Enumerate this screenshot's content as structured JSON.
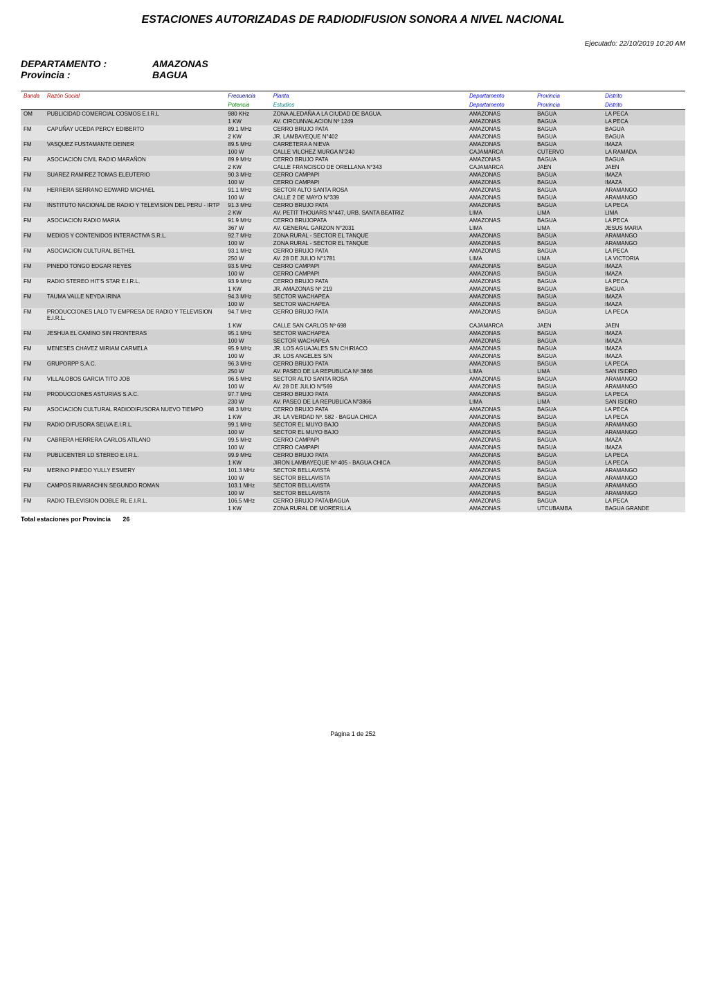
{
  "page": {
    "title": "ESTACIONES AUTORIZADAS DE RADIODIFUSION SONORA A NIVEL NACIONAL",
    "executed_label": "Ejecutado:",
    "executed_value": "22/10/2019 10:20 AM",
    "page_number": "Página 1 de 252"
  },
  "header_block": {
    "dept_label": "DEPARTAMENTO :",
    "dept_value": "AMAZONAS",
    "prov_label": "Provincia :",
    "prov_value": "BAGUA"
  },
  "table": {
    "headers_row1": {
      "banda": "Banda",
      "razon": "Razón Social",
      "frecuencia": "Frecuencia",
      "planta": "Planta",
      "departamento": "Departamento",
      "provincia": "Provincia",
      "distrito": "Distrito"
    },
    "headers_row2": {
      "banda": "",
      "razon": "",
      "potencia": "Potencia",
      "estudios": "Estudios",
      "departamento": "Departamento",
      "provincia": "Provincia",
      "distrito": "Distrito"
    },
    "header_colors": {
      "banda": "#c00000",
      "razon": "#c00000",
      "frecuencia": "#000080",
      "planta": "#0000ff",
      "departamento": "#0000ff",
      "provincia": "#0000ff",
      "distrito": "#0000ff",
      "potencia": "#008000",
      "estudios": "#008080"
    },
    "rows": [
      {
        "g": "a",
        "banda": "OM",
        "razon": "PUBLICIDAD COMERCIAL COSMOS E.I.R.L",
        "f1": "980 KHz",
        "p1": "ZONA ALEDAÑA A LA CIUDAD DE BAGUA.",
        "d1": "AMAZONAS",
        "pr1": "BAGUA",
        "di1": "LA PECA",
        "f2": "1 KW",
        "p2": "AV. CIRCUNVALACION Nº 1249",
        "d2": "AMAZONAS",
        "pr2": "BAGUA",
        "di2": "LA PECA"
      },
      {
        "g": "b",
        "banda": "FM",
        "razon": "CAPUÑAY UCEDA PERCY EDIBERTO",
        "f1": "89.1 MHz",
        "p1": "CERRO BRUJO PATA",
        "d1": "AMAZONAS",
        "pr1": "BAGUA",
        "di1": "BAGUA",
        "f2": "2 KW",
        "p2": "JR. LAMBAYEQUE N°402",
        "d2": "AMAZONAS",
        "pr2": "BAGUA",
        "di2": "BAGUA"
      },
      {
        "g": "a",
        "banda": "FM",
        "razon": "VASQUEZ FUSTAMANTE DEINER",
        "f1": "89.5 MHz",
        "p1": "CARRETERA A NIEVA",
        "d1": "AMAZONAS",
        "pr1": "BAGUA",
        "di1": "IMAZA",
        "f2": "100 W",
        "p2": "CALLE VILCHEZ MURGA N°240",
        "d2": "CAJAMARCA",
        "pr2": "CUTERVO",
        "di2": "LA RAMADA"
      },
      {
        "g": "b",
        "banda": "FM",
        "razon": "ASOCIACION CIVIL RADIO MARAÑON",
        "f1": "89.9 MHz",
        "p1": "CERRO BRUJO PATA",
        "d1": "AMAZONAS",
        "pr1": "BAGUA",
        "di1": "BAGUA",
        "f2": "2 KW",
        "p2": "CALLE FRANCISCO DE ORELLANA N°343",
        "d2": "CAJAMARCA",
        "pr2": "JAEN",
        "di2": "JAEN"
      },
      {
        "g": "a",
        "banda": "FM",
        "razon": "SUAREZ RAMIREZ TOMAS ELEUTERIO",
        "f1": "90.3 MHz",
        "p1": "CERRO CAMPAPI",
        "d1": "AMAZONAS",
        "pr1": "BAGUA",
        "di1": "IMAZA",
        "f2": "100 W",
        "p2": "CERRO CAMPAPI",
        "d2": "AMAZONAS",
        "pr2": "BAGUA",
        "di2": "IMAZA"
      },
      {
        "g": "b",
        "banda": "FM",
        "razon": "HERRERA SERRANO EDWARD MICHAEL",
        "f1": "91.1 MHz",
        "p1": "SECTOR ALTO SANTA ROSA",
        "d1": "AMAZONAS",
        "pr1": "BAGUA",
        "di1": "ARAMANGO",
        "f2": "100 W",
        "p2": "CALLE 2 DE MAYO N°339",
        "d2": "AMAZONAS",
        "pr2": "BAGUA",
        "di2": "ARAMANGO"
      },
      {
        "g": "a",
        "banda": "FM",
        "razon": "INSTITUTO NACIONAL DE RADIO Y TELEVISION DEL PERU - IRTP",
        "f1": "91.3 MHz",
        "p1": "CERRO BRUJO PATA",
        "d1": "AMAZONAS",
        "pr1": "BAGUA",
        "di1": "LA PECA",
        "f2": "2 KW",
        "p2": "AV. PETIT THOUARS N°447, URB. SANTA BEATRIZ",
        "d2": "LIMA",
        "pr2": "LIMA",
        "di2": "LIMA"
      },
      {
        "g": "b",
        "banda": "FM",
        "razon": "ASOCIACION RADIO MARIA",
        "f1": "91.9 MHz",
        "p1": "CERRO BRUJOPATA",
        "d1": "AMAZONAS",
        "pr1": "BAGUA",
        "di1": "LA PECA",
        "f2": "367 W",
        "p2": "AV. GENERAL GARZON N°2031",
        "d2": "LIMA",
        "pr2": "LIMA",
        "di2": "JESUS MARIA"
      },
      {
        "g": "a",
        "banda": "FM",
        "razon": "MEDIOS Y CONTENIDOS INTERACTIVA S.R.L.",
        "f1": "92.7 MHz",
        "p1": "ZONA RURAL - SECTOR EL TANQUE",
        "d1": "AMAZONAS",
        "pr1": "BAGUA",
        "di1": "ARAMANGO",
        "f2": "100 W",
        "p2": "ZONA RURAL - SECTOR EL TANQUE",
        "d2": "AMAZONAS",
        "pr2": "BAGUA",
        "di2": "ARAMANGO"
      },
      {
        "g": "b",
        "banda": "FM",
        "razon": "ASOCIACION CULTURAL BETHEL",
        "f1": "93.1 MHz",
        "p1": "CERRO BRUJO PATA",
        "d1": "AMAZONAS",
        "pr1": "BAGUA",
        "di1": "LA PECA",
        "f2": "250 W",
        "p2": "AV. 28 DE JULIO N°1781",
        "d2": "LIMA",
        "pr2": "LIMA",
        "di2": "LA VICTORIA"
      },
      {
        "g": "a",
        "banda": "FM",
        "razon": "PINEDO TONGO EDGAR REYES",
        "f1": "93.5 MHz",
        "p1": "CERRO CAMPAPI",
        "d1": "AMAZONAS",
        "pr1": "BAGUA",
        "di1": "IMAZA",
        "f2": "100 W",
        "p2": "CERRO CAMPAPI",
        "d2": "AMAZONAS",
        "pr2": "BAGUA",
        "di2": "IMAZA"
      },
      {
        "g": "b",
        "banda": "FM",
        "razon": "RADIO STEREO HIT'S STAR E.I.R.L.",
        "f1": "93.9 MHz",
        "p1": "CERRO BRUJO PATA",
        "d1": "AMAZONAS",
        "pr1": "BAGUA",
        "di1": "LA PECA",
        "f2": "1 KW",
        "p2": "JR. AMAZONAS Nº 219",
        "d2": "AMAZONAS",
        "pr2": "BAGUA",
        "di2": "BAGUA"
      },
      {
        "g": "a",
        "banda": "FM",
        "razon": "TAUMA VALLE NEYDA IRINA",
        "f1": "94.3 MHz",
        "p1": "SECTOR WACHAPEA",
        "d1": "AMAZONAS",
        "pr1": "BAGUA",
        "di1": "IMAZA",
        "f2": "100 W",
        "p2": "SECTOR WACHAPEA",
        "d2": "AMAZONAS",
        "pr2": "BAGUA",
        "di2": "IMAZA"
      },
      {
        "g": "b",
        "banda": "FM",
        "razon": "PRODUCCIONES LALO TV EMPRESA DE RADIO Y TELEVISION E.I.R.L.",
        "f1": "94.7 MHz",
        "p1": "CERRO BRUJO PATA",
        "d1": "AMAZONAS",
        "pr1": "BAGUA",
        "di1": "LA PECA",
        "f2": "1 KW",
        "p2": "CALLE SAN CARLOS Nº 698",
        "d2": "CAJAMARCA",
        "pr2": "JAEN",
        "di2": "JAEN"
      },
      {
        "g": "a",
        "banda": "FM",
        "razon": "JESHUA EL CAMINO SIN FRONTERAS",
        "f1": "95.1 MHz",
        "p1": "SECTOR WACHAPEA",
        "d1": "AMAZONAS",
        "pr1": "BAGUA",
        "di1": "IMAZA",
        "f2": "100 W",
        "p2": "SECTOR WACHAPEA",
        "d2": "AMAZONAS",
        "pr2": "BAGUA",
        "di2": "IMAZA"
      },
      {
        "g": "b",
        "banda": "FM",
        "razon": "MENESES CHAVEZ MIRIAM CARMELA",
        "f1": "95.9 MHz",
        "p1": "JR. LOS AGUAJALES S/N CHIRIACO",
        "d1": "AMAZONAS",
        "pr1": "BAGUA",
        "di1": "IMAZA",
        "f2": "100 W",
        "p2": "JR. LOS ANGELES S/N",
        "d2": "AMAZONAS",
        "pr2": "BAGUA",
        "di2": "IMAZA"
      },
      {
        "g": "a",
        "banda": "FM",
        "razon": "GRUPORPP S.A.C.",
        "f1": "96.3 MHz",
        "p1": "CERRO BRUJO PATA",
        "d1": "AMAZONAS",
        "pr1": "BAGUA",
        "di1": "LA PECA",
        "f2": "250 W",
        "p2": "AV. PASEO DE LA REPUBLICA Nº 3866",
        "d2": "LIMA",
        "pr2": "LIMA",
        "di2": "SAN ISIDRO"
      },
      {
        "g": "b",
        "banda": "FM",
        "razon": "VILLALOBOS GARCIA TITO JOB",
        "f1": "96.5 MHz",
        "p1": "SECTOR ALTO SANTA ROSA",
        "d1": "AMAZONAS",
        "pr1": "BAGUA",
        "di1": "ARAMANGO",
        "f2": "100 W",
        "p2": "AV. 28 DE JULIO N°569",
        "d2": "AMAZONAS",
        "pr2": "BAGUA",
        "di2": "ARAMANGO"
      },
      {
        "g": "a",
        "banda": "FM",
        "razon": "PRODUCCIONES ASTURIAS S.A.C.",
        "f1": "97.7 MHz",
        "p1": "CERRO BRUJO PATA",
        "d1": "AMAZONAS",
        "pr1": "BAGUA",
        "di1": "LA PECA",
        "f2": "230 W",
        "p2": "AV. PASEO DE LA REPUBLICA N°3866",
        "d2": "LIMA",
        "pr2": "LIMA",
        "di2": "SAN ISIDRO"
      },
      {
        "g": "b",
        "banda": "FM",
        "razon": "ASOCIACION CULTURAL RADIODIFUSORA NUEVO TIEMPO",
        "f1": "98.3 MHz",
        "p1": "CERRO BRUJO PATA",
        "d1": "AMAZONAS",
        "pr1": "BAGUA",
        "di1": "LA PECA",
        "f2": "1 KW",
        "p2": "JR. LA VERDAD Nº. 582 - BAGUA CHICA",
        "d2": "AMAZONAS",
        "pr2": "BAGUA",
        "di2": "LA PECA"
      },
      {
        "g": "a",
        "banda": "FM",
        "razon": "RADIO DIFUSORA SELVA E.I.R.L.",
        "f1": "99.1 MHz",
        "p1": "SECTOR EL MUYO BAJO",
        "d1": "AMAZONAS",
        "pr1": "BAGUA",
        "di1": "ARAMANGO",
        "f2": "100 W",
        "p2": "SECTOR EL MUYO BAJO",
        "d2": "AMAZONAS",
        "pr2": "BAGUA",
        "di2": "ARAMANGO"
      },
      {
        "g": "b",
        "banda": "FM",
        "razon": "CABRERA HERRERA CARLOS ATILANO",
        "f1": "99.5 MHz",
        "p1": "CERRO CAMPAPI",
        "d1": "AMAZONAS",
        "pr1": "BAGUA",
        "di1": "IMAZA",
        "f2": "100 W",
        "p2": "CERRO CAMPAPI",
        "d2": "AMAZONAS",
        "pr2": "BAGUA",
        "di2": "IMAZA"
      },
      {
        "g": "a",
        "banda": "FM",
        "razon": "PUBLICENTER LD STEREO E.I.R.L.",
        "f1": "99.9 MHz",
        "p1": "CERRO BRUJO PATA",
        "d1": "AMAZONAS",
        "pr1": "BAGUA",
        "di1": "LA PECA",
        "f2": "1 KW",
        "p2": "JIRON LAMBAYEQUE Nº 405 - BAGUA CHICA",
        "d2": "AMAZONAS",
        "pr2": "BAGUA",
        "di2": "LA PECA"
      },
      {
        "g": "b",
        "banda": "FM",
        "razon": "MERINO PINEDO YULLY ESMERY",
        "f1": "101.3 MHz",
        "p1": "SECTOR BELLAVISTA",
        "d1": "AMAZONAS",
        "pr1": "BAGUA",
        "di1": "ARAMANGO",
        "f2": "100 W",
        "p2": "SECTOR BELLAVISTA",
        "d2": "AMAZONAS",
        "pr2": "BAGUA",
        "di2": "ARAMANGO"
      },
      {
        "g": "a",
        "banda": "FM",
        "razon": "CAMPOS RIMARACHIN SEGUNDO ROMAN",
        "f1": "103.1 MHz",
        "p1": "SECTOR BELLAVISTA",
        "d1": "AMAZONAS",
        "pr1": "BAGUA",
        "di1": "ARAMANGO",
        "f2": "100 W",
        "p2": "SECTOR BELLAVISTA",
        "d2": "AMAZONAS",
        "pr2": "BAGUA",
        "di2": "ARAMANGO"
      },
      {
        "g": "b",
        "banda": "FM",
        "razon": "RADIO TELEVISION DOBLE RL E.I.R.L.",
        "f1": "106.5 MHz",
        "p1": "CERRO BRUJO PATA/BAGUA",
        "d1": "AMAZONAS",
        "pr1": "BAGUA",
        "di1": "LA PECA",
        "f2": "1 KW",
        "p2": "ZONA RURAL DE MORERILLA",
        "d2": "AMAZONAS",
        "pr2": "UTCUBAMBA",
        "di2": "BAGUA GRANDE"
      }
    ],
    "total_label": "Total estaciones por Provincia",
    "total_value": "26"
  },
  "styling": {
    "bg_a": "#d0d0d0",
    "bg_b": "#e2e2e2",
    "body_font_size": 8,
    "title_font_size": 16
  }
}
